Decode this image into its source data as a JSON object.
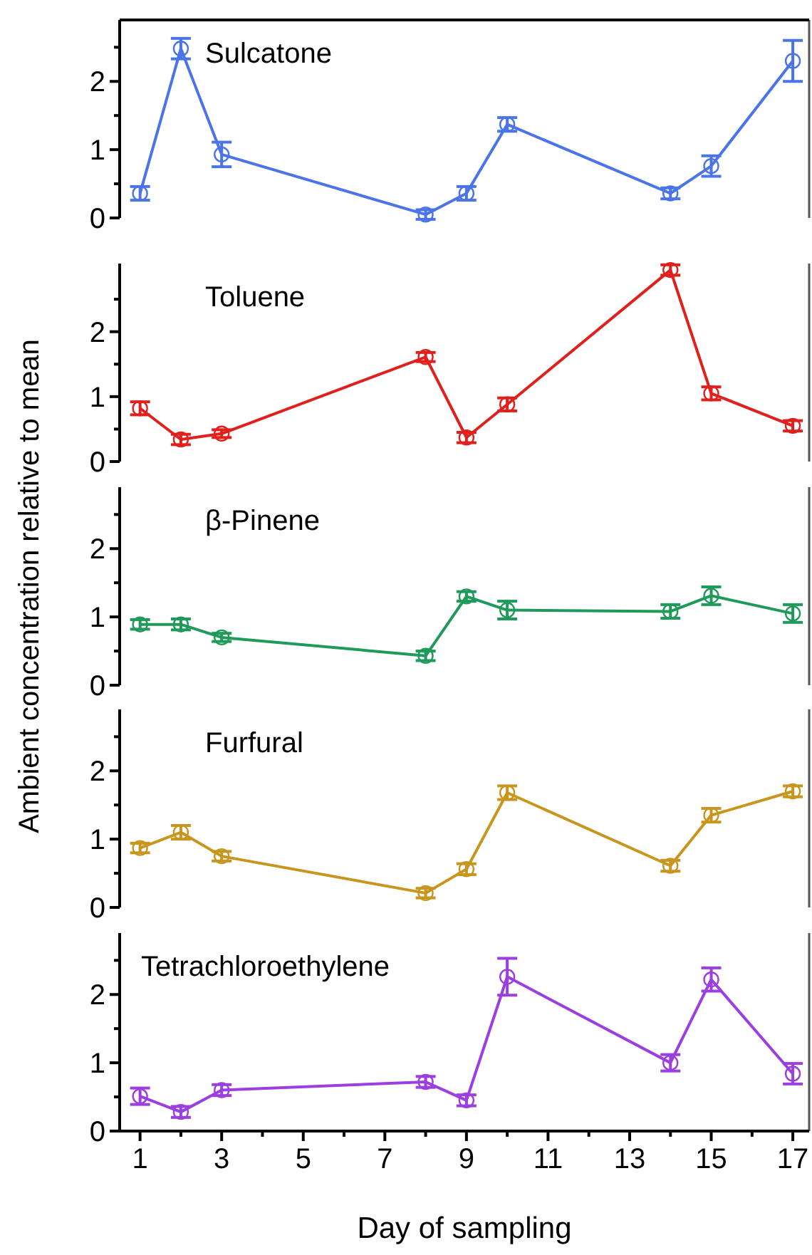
{
  "chart_data": [
    {
      "type": "line",
      "title": "Sulcatone",
      "x": [
        1,
        2,
        3,
        8,
        9,
        10,
        14,
        15,
        17
      ],
      "xlim": [
        0.5,
        17.4
      ],
      "ylim": [
        0,
        2.9
      ],
      "yticks": [
        0,
        {
          "value": 0.5,
          "label": null
        },
        1,
        {
          "value": 1.5,
          "label": null
        },
        2,
        {
          "value": 2.5,
          "label": null
        }
      ],
      "tick_labels": "y",
      "marker": "circle",
      "series": [
        {
          "color": "#4a74e8",
          "values": [
            0.36,
            2.48,
            0.93,
            0.05,
            0.36,
            1.37,
            0.36,
            0.76,
            2.3
          ],
          "errors": [
            0.1,
            0.15,
            0.18,
            0.07,
            0.1,
            0.1,
            0.08,
            0.15,
            0.3
          ]
        }
      ]
    },
    {
      "type": "line",
      "title": "Toluene",
      "x": [
        1,
        2,
        3,
        8,
        9,
        10,
        14,
        15,
        17
      ],
      "xlim": [
        0.5,
        17.4
      ],
      "ylim": [
        0,
        3.05
      ],
      "yticks": [
        0,
        {
          "value": 0.5,
          "label": null
        },
        1,
        {
          "value": 1.5,
          "label": null
        },
        2,
        {
          "value": 2.5,
          "label": null
        }
      ],
      "tick_labels": "y",
      "marker": "circle",
      "series": [
        {
          "color": "#e0201c",
          "values": [
            0.82,
            0.34,
            0.43,
            1.61,
            0.37,
            0.88,
            2.95,
            1.05,
            0.55
          ],
          "errors": [
            0.1,
            0.08,
            0.06,
            0.07,
            0.08,
            0.1,
            0.08,
            0.1,
            0.08
          ]
        }
      ]
    },
    {
      "type": "line",
      "title": "β-Pinene",
      "ylabel": "Ambient concentration relative to mean",
      "x": [
        1,
        2,
        3,
        8,
        9,
        10,
        14,
        15,
        17
      ],
      "xlim": [
        0.5,
        17.4
      ],
      "ylim": [
        0,
        2.9
      ],
      "yticks": [
        0,
        {
          "value": 0.5,
          "label": null
        },
        1,
        {
          "value": 1.5,
          "label": null
        },
        2,
        {
          "value": 2.5,
          "label": null
        }
      ],
      "tick_labels": "y",
      "marker": "circle",
      "series": [
        {
          "color": "#1f9a5a",
          "values": [
            0.89,
            0.89,
            0.7,
            0.43,
            1.3,
            1.1,
            1.08,
            1.31,
            1.05
          ],
          "errors": [
            0.07,
            0.08,
            0.06,
            0.07,
            0.07,
            0.13,
            0.1,
            0.13,
            0.13
          ]
        }
      ]
    },
    {
      "type": "line",
      "title": "Furfural",
      "x": [
        1,
        2,
        3,
        8,
        9,
        10,
        14,
        15,
        17
      ],
      "xlim": [
        0.5,
        17.4
      ],
      "ylim": [
        0,
        2.9
      ],
      "yticks": [
        0,
        {
          "value": 0.5,
          "label": null
        },
        1,
        {
          "value": 1.5,
          "label": null
        },
        2,
        {
          "value": 2.5,
          "label": null
        }
      ],
      "tick_labels": "y",
      "marker": "circle",
      "series": [
        {
          "color": "#c8961e",
          "values": [
            0.87,
            1.1,
            0.75,
            0.21,
            0.56,
            1.68,
            0.61,
            1.35,
            1.7
          ],
          "errors": [
            0.07,
            0.1,
            0.07,
            0.07,
            0.08,
            0.1,
            0.08,
            0.1,
            0.08
          ]
        }
      ]
    },
    {
      "type": "line",
      "title": "Tetrachloroethylene",
      "xlabel": "Day of sampling",
      "x": [
        1,
        2,
        3,
        8,
        9,
        10,
        14,
        15,
        17
      ],
      "xlim": [
        0.5,
        17.4
      ],
      "xticks": [
        1,
        {
          "value": 2,
          "label": null
        },
        3,
        {
          "value": 4,
          "label": null
        },
        5,
        {
          "value": 6,
          "label": null
        },
        7,
        {
          "value": 8,
          "label": null
        },
        9,
        {
          "value": 10,
          "label": null
        },
        11,
        {
          "value": 12,
          "label": null
        },
        13,
        {
          "value": 14,
          "label": null
        },
        15,
        {
          "value": 16,
          "label": null
        },
        17
      ],
      "ylim": [
        0,
        2.9
      ],
      "yticks": [
        0,
        {
          "value": 0.5,
          "label": null
        },
        1,
        {
          "value": 1.5,
          "label": null
        },
        2,
        {
          "value": 2.5,
          "label": null
        }
      ],
      "marker": "circle",
      "series": [
        {
          "color": "#9b3fe0",
          "values": [
            0.51,
            0.28,
            0.6,
            0.72,
            0.45,
            2.26,
            1.0,
            2.22,
            0.84
          ],
          "errors": [
            0.12,
            0.08,
            0.08,
            0.08,
            0.08,
            0.27,
            0.12,
            0.17,
            0.15
          ]
        }
      ]
    }
  ]
}
